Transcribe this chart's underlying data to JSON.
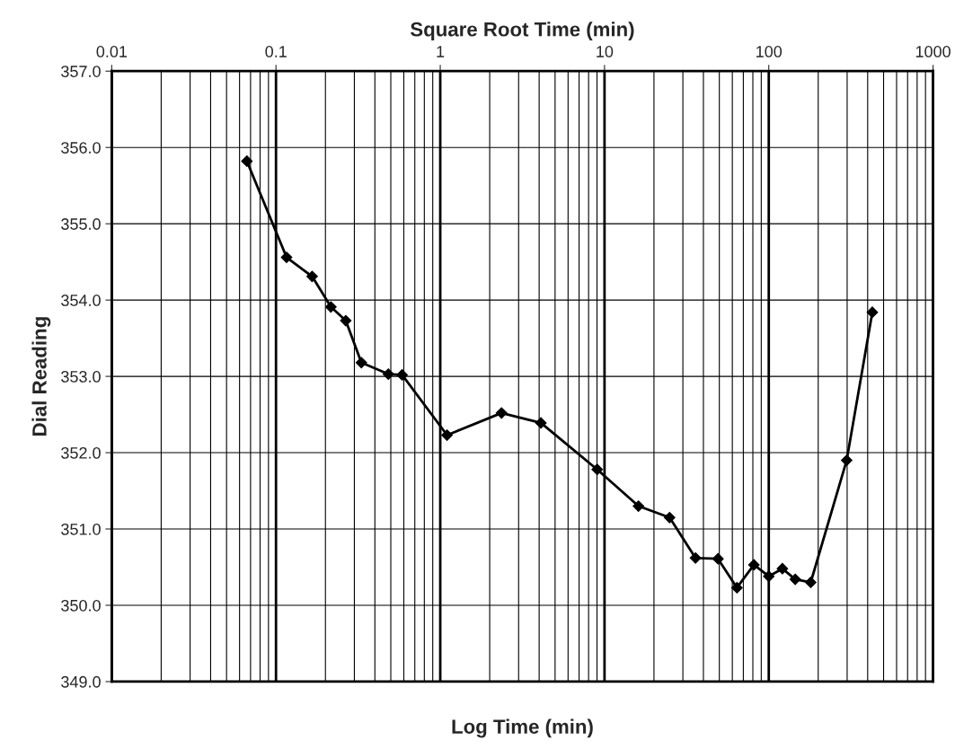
{
  "chart_data": {
    "type": "line",
    "xlabel": "Log Time (min)",
    "title": "Square Root Time (min)",
    "ylabel": "Dial Reading",
    "log": "x",
    "grid": true,
    "marker": "diamond",
    "line_style": "solid",
    "xlim": [
      0.01,
      1000
    ],
    "xticks": [
      0.01,
      0.1,
      1,
      10,
      100,
      1000
    ],
    "ylim": [
      349,
      357
    ],
    "yticks": [
      {
        "value": 349,
        "label": "349.0"
      },
      {
        "value": 350,
        "label": "350.0"
      },
      {
        "value": 351,
        "label": "351.0"
      },
      {
        "value": 352,
        "label": "352.0"
      },
      {
        "value": 353,
        "label": "353.0"
      },
      {
        "value": 354,
        "label": "354.0"
      },
      {
        "value": 355,
        "label": "355.0"
      },
      {
        "value": 356,
        "label": "356.0"
      },
      {
        "value": 357,
        "label": "357.0"
      }
    ],
    "series": [
      {
        "color": "#000000",
        "x": [
          0.0665,
          0.116,
          0.166,
          0.216,
          0.266,
          0.331,
          0.483,
          0.586,
          1.1,
          2.36,
          4.1,
          9.02,
          16.1,
          24.9,
          35.8,
          49.1,
          64.0,
          81.2,
          100,
          121,
          145,
          180,
          298,
          427
        ],
        "values": [
          355.82,
          354.56,
          354.31,
          353.91,
          353.73,
          353.18,
          353.03,
          353.02,
          352.23,
          352.52,
          352.39,
          351.78,
          351.3,
          351.15,
          350.62,
          350.61,
          350.23,
          350.53,
          350.38,
          350.48,
          350.34,
          350.3,
          351.9,
          353.84
        ]
      }
    ]
  }
}
